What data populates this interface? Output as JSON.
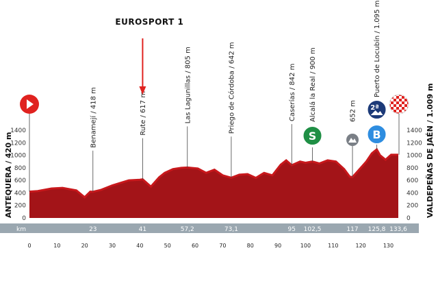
{
  "broadcast_label": "EUROSPORT 1",
  "colors": {
    "profile_fill": "#a31418",
    "profile_top": "#c8181c",
    "marker_arrow": "#e0221f",
    "km_bar": "#9aa7b0",
    "sprint_badge": "#1f8f45",
    "climb_badge": "#1b5aa8",
    "hc_badge": "#1c3a78",
    "third_cat_badge": "#7a7f86",
    "start_marker": "#e0221f"
  },
  "chart_data": {
    "type": "area",
    "title": "",
    "xlabel": "",
    "ylabel": "",
    "xlim": [
      0,
      133.6
    ],
    "ylim": [
      0,
      1400
    ],
    "y_ticks": [
      0,
      200,
      400,
      600,
      800,
      1000,
      1200,
      1400
    ],
    "x_ticks": [
      0,
      10,
      20,
      30,
      40,
      50,
      60,
      70,
      80,
      90,
      100,
      110,
      120,
      130
    ],
    "km_row_label": "km",
    "profile": {
      "x": [
        0,
        3,
        8,
        12,
        17,
        20,
        22,
        23,
        26,
        30,
        33,
        36,
        40,
        41,
        44,
        47,
        49,
        52,
        55,
        57.2,
        61,
        64,
        67,
        70,
        73.1,
        76,
        79,
        82,
        85,
        88,
        91,
        93,
        95,
        98,
        100,
        102.5,
        105,
        108,
        111,
        114,
        116,
        117,
        120,
        122,
        124,
        125.8,
        127,
        129,
        131,
        133.6
      ],
      "y": [
        420,
        430,
        470,
        480,
        440,
        330,
        420,
        418,
        450,
        520,
        560,
        600,
        610,
        617,
        500,
        650,
        720,
        780,
        800,
        805,
        790,
        720,
        770,
        680,
        642,
        690,
        700,
        640,
        720,
        680,
        850,
        920,
        842,
        900,
        880,
        900,
        870,
        920,
        900,
        780,
        660,
        652,
        800,
        900,
        1030,
        1095,
        1000,
        930,
        1009,
        1009
      ]
    },
    "waypoints": [
      {
        "km": 23,
        "km_label": "23",
        "label": "Benamejí / 418 m"
      },
      {
        "km": 41,
        "km_label": "41",
        "label": "Rute / 617 m"
      },
      {
        "km": 57.2,
        "km_label": "57,2",
        "label": "Las Lagunillas / 805 m"
      },
      {
        "km": 73.1,
        "km_label": "73,1",
        "label": "Priego de Córdoba / 642 m"
      },
      {
        "km": 95,
        "km_label": "95",
        "label": "Caserías / 842 m"
      },
      {
        "km": 102.5,
        "km_label": "102,5",
        "label": "Alcalá la Real / 900 m"
      },
      {
        "km": 117,
        "km_label": "117",
        "label": "652 m"
      },
      {
        "km": 125.8,
        "km_label": "125,8",
        "label": "Puerto de Locubín / 1.095 m"
      },
      {
        "km": 133.6,
        "km_label": "133,6",
        "label": ""
      }
    ],
    "start_label": "ANTEQUERA / 420 m",
    "finish_label": "VALDEPEÑAS DE JAÉN / 1.009 m",
    "badges": {
      "sprint": "S",
      "climb_hc": "2ª",
      "climb_b": "B"
    },
    "broadcast_km": 41,
    "grid": false
  }
}
